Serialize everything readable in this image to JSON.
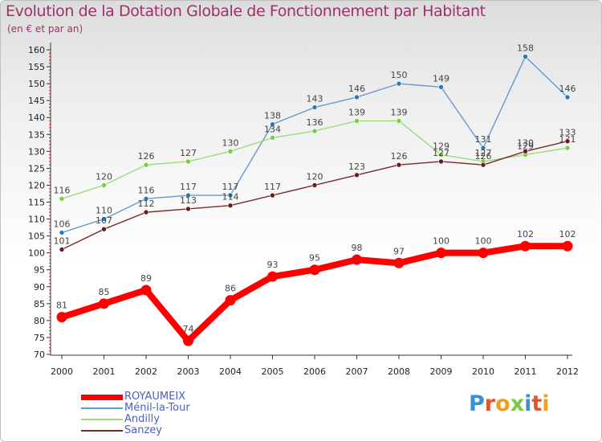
{
  "title": "Evolution de la Dotation Globale de Fonctionnement par Habitant",
  "subtitle": "(en € et par an)",
  "brand": {
    "text": "Proxiti",
    "letter_colors": [
      "#3a8fd8",
      "#e8532a",
      "#f2a01c",
      "#7ac943",
      "#3a8fd8",
      "#e8532a",
      "#f2a01c"
    ]
  },
  "chart_data": {
    "type": "line",
    "title": "Evolution de la Dotation Globale de Fonctionnement par Habitant",
    "subtitle": "(en € et par an)",
    "xlabel": "",
    "ylabel": "",
    "ylim": [
      70,
      160
    ],
    "yticks": [
      70,
      75,
      80,
      85,
      90,
      95,
      100,
      105,
      110,
      115,
      120,
      125,
      130,
      135,
      140,
      145,
      150,
      155,
      160
    ],
    "categories": [
      "2000",
      "2001",
      "2002",
      "2003",
      "2004",
      "2005",
      "2006",
      "2007",
      "2008",
      "2009",
      "2010",
      "2011",
      "2012"
    ],
    "grid": false,
    "legend_position": "bottom-left",
    "series": [
      {
        "name": "ROYAUMEIX",
        "color": "#ff0000",
        "values": [
          81,
          85,
          89,
          74,
          86,
          93,
          95,
          98,
          97,
          100,
          100,
          102,
          102
        ],
        "emphasis": true
      },
      {
        "name": "Ménil-la-Tour",
        "color": "#6699cc",
        "marker_color": "#2f78b8",
        "values": [
          106,
          110,
          116,
          117,
          117,
          138,
          143,
          146,
          150,
          149,
          131,
          158,
          146
        ]
      },
      {
        "name": "Andilly",
        "color": "#99dd77",
        "marker_color": "#77cc44",
        "values": [
          116,
          120,
          126,
          127,
          130,
          134,
          136,
          139,
          139,
          129,
          127,
          129,
          131
        ]
      },
      {
        "name": "Sanzey",
        "color": "#7a2a2a",
        "marker_color": "#6a1a22",
        "values": [
          101,
          107,
          112,
          113,
          114,
          117,
          120,
          123,
          126,
          127,
          126,
          130,
          133
        ]
      }
    ]
  }
}
